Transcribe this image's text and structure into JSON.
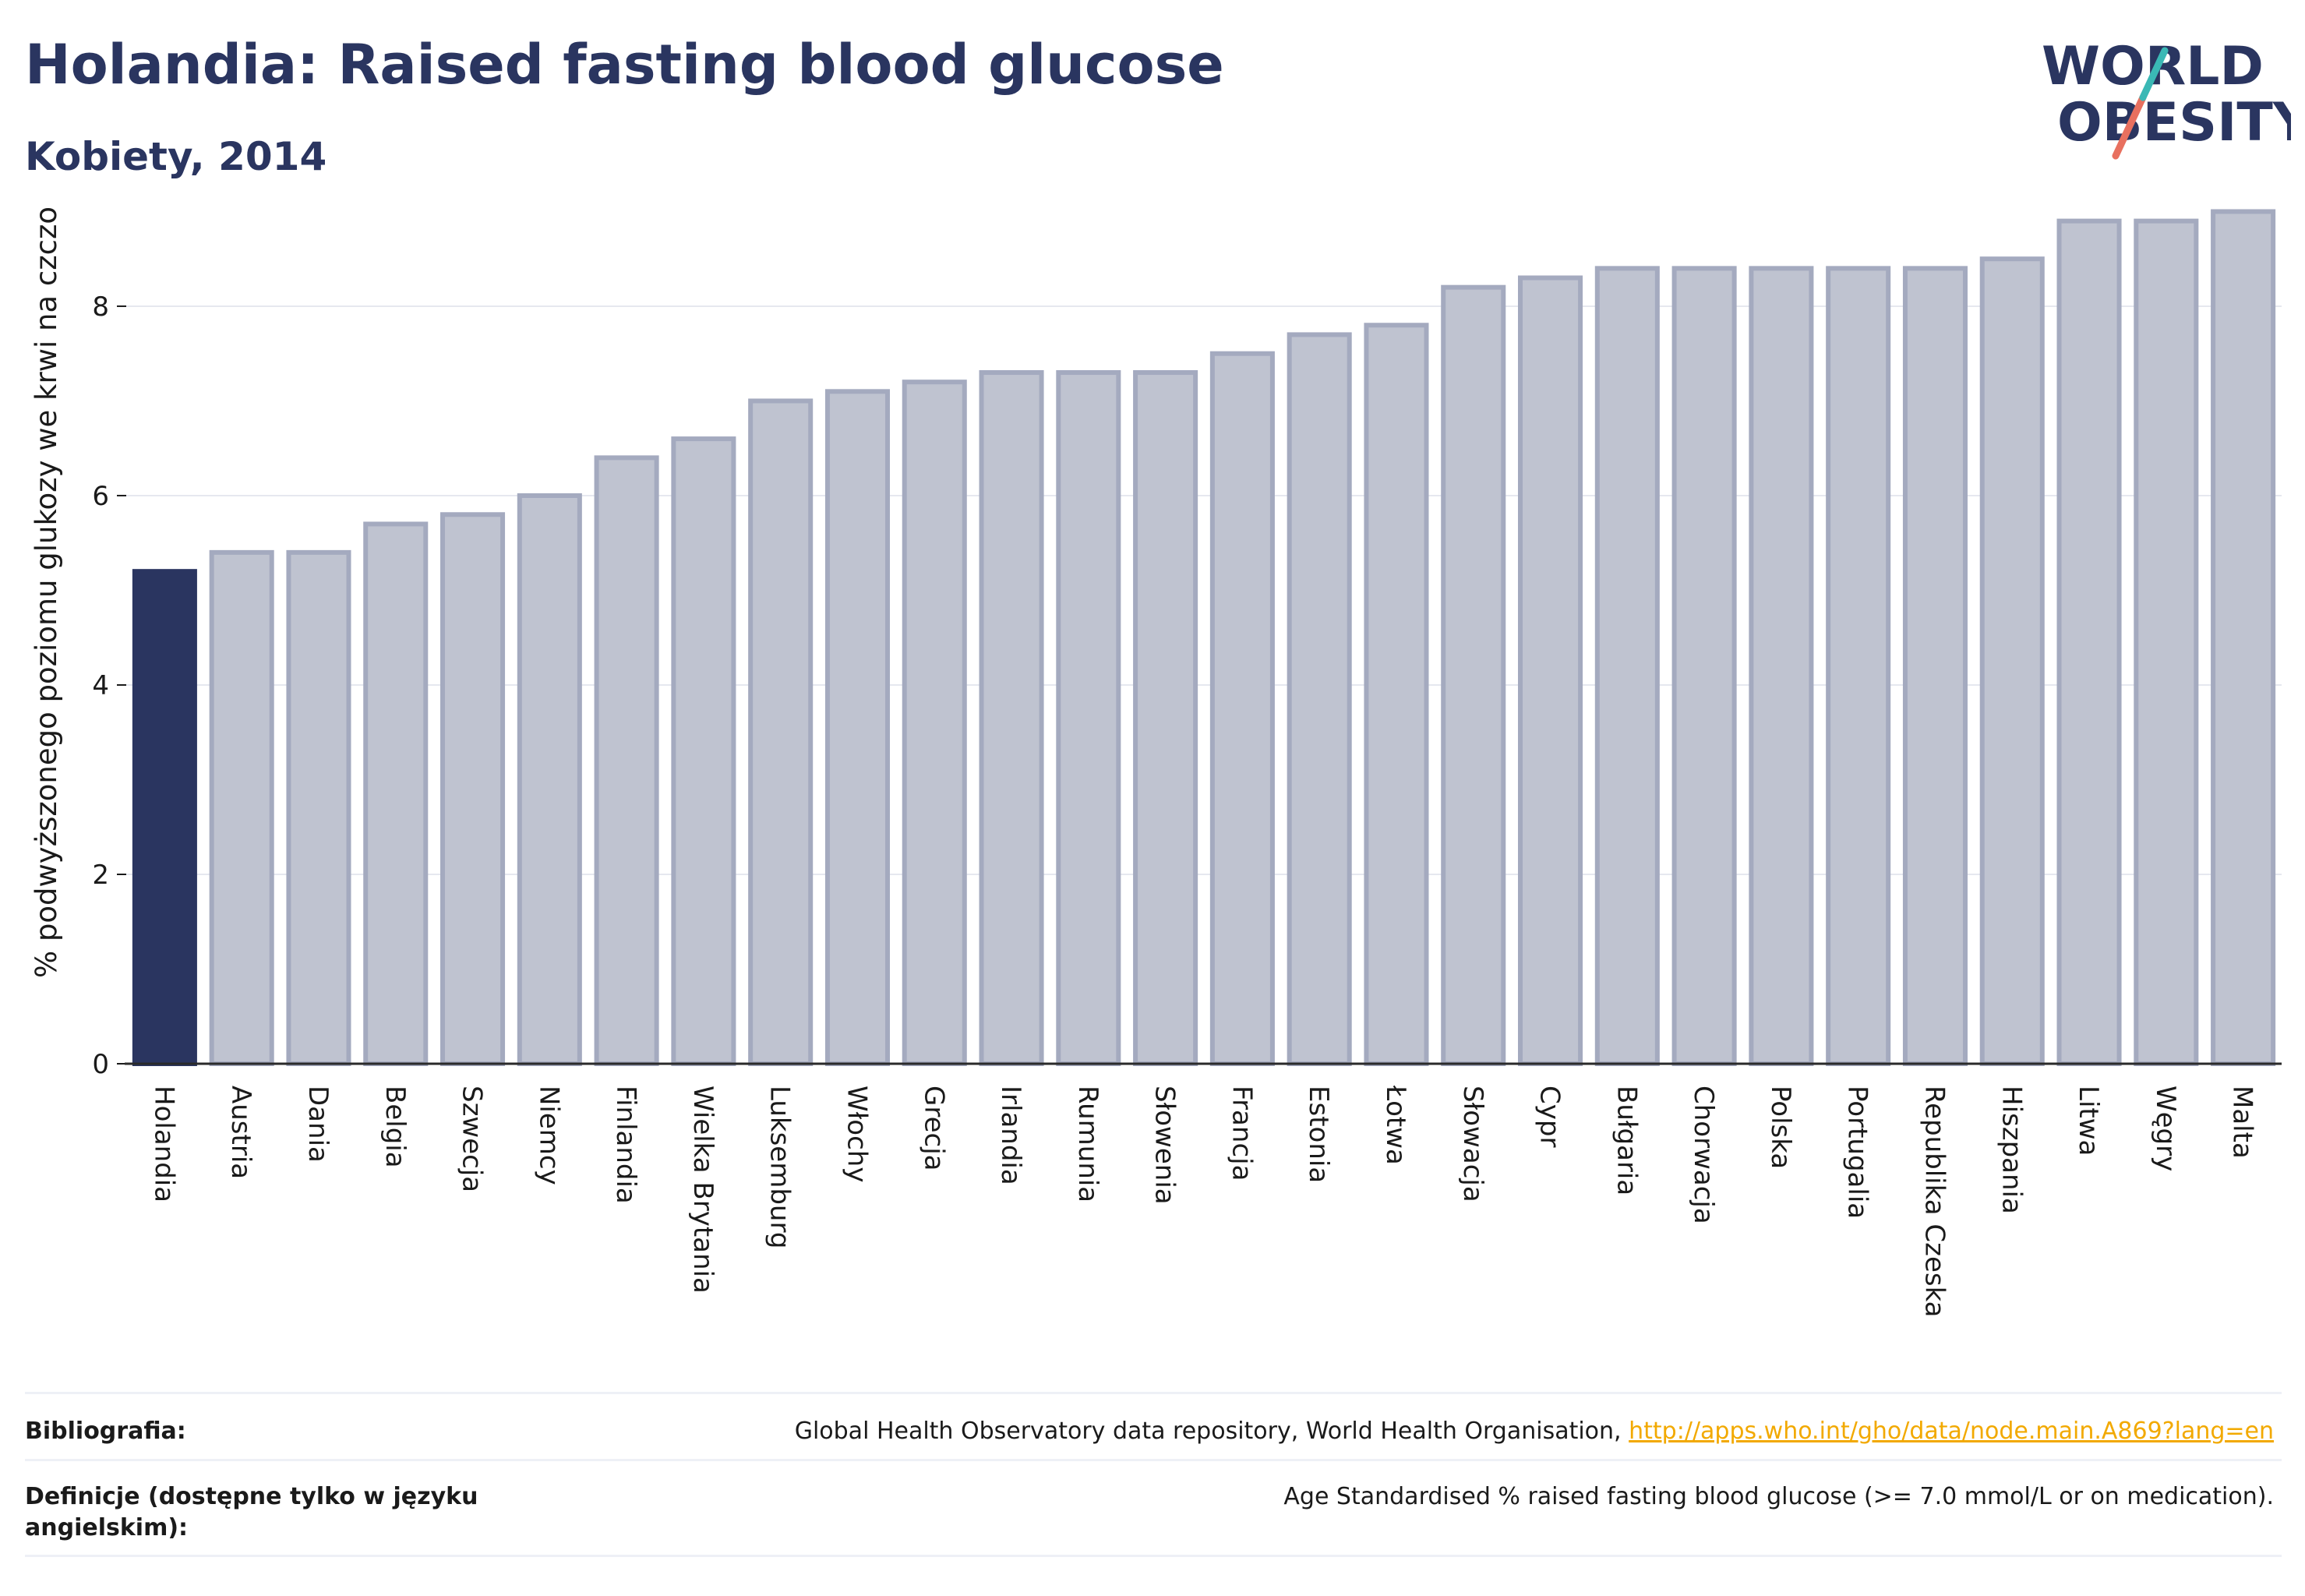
{
  "header": {
    "title": "Holandia: Raised fasting blood glucose",
    "subtitle": "Kobiety, 2014",
    "logo_line1": "WORLD",
    "logo_line2": "OBESITY"
  },
  "chart_data": {
    "type": "bar",
    "ylabel": "% podwyższonego poziomu glukozy we krwi na czczo",
    "xlabel": "",
    "ylim": [
      0,
      9.3
    ],
    "yticks": [
      0,
      2,
      4,
      6,
      8
    ],
    "grid": true,
    "highlight_category": "Holandia",
    "categories": [
      "Holandia",
      "Austria",
      "Dania",
      "Belgia",
      "Szwecja",
      "Niemcy",
      "Finlandia",
      "Wielka Brytania",
      "Luksemburg",
      "Włochy",
      "Grecja",
      "Irlandia",
      "Rumunia",
      "Słowenia",
      "Francja",
      "Estonia",
      "Łotwa",
      "Słowacja",
      "Cypr",
      "Bułgaria",
      "Chorwacja",
      "Polska",
      "Portugalia",
      "Republika Czeska",
      "Hiszpania",
      "Litwa",
      "Węgry",
      "Malta"
    ],
    "values": [
      5.2,
      5.4,
      5.4,
      5.7,
      5.8,
      6.0,
      6.4,
      6.6,
      7.0,
      7.1,
      7.2,
      7.3,
      7.3,
      7.3,
      7.5,
      7.7,
      7.8,
      8.2,
      8.3,
      8.4,
      8.4,
      8.4,
      8.4,
      8.4,
      8.5,
      8.9,
      8.9,
      9.0
    ],
    "colors": {
      "highlight": "#2a3560",
      "bar_fill": "#bfc3d0",
      "bar_edge": "#a4aabf"
    }
  },
  "footer": {
    "bibliography_label": "Bibliografia:",
    "bibliography_text": "Global Health Observatory data repository, World Health Organisation,",
    "bibliography_link": "http://apps.who.int/gho/data/node.main.A869?lang=en",
    "definitions_label": "Definicje (dostępne tylko w języku angielskim):",
    "definitions_text": "Age Standardised % raised fasting blood glucose (>= 7.0 mmol/L or on medication)."
  }
}
